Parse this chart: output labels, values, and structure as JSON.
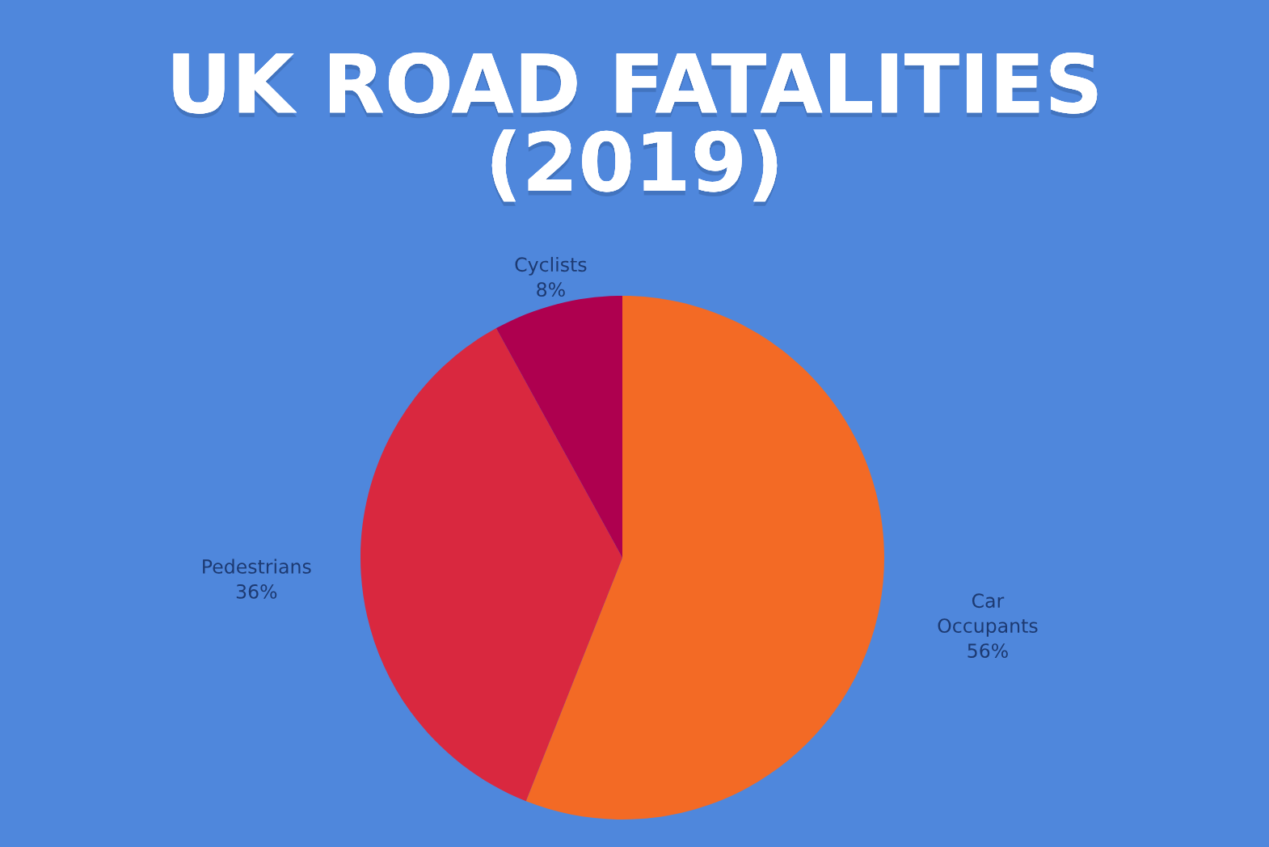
{
  "chart_data": {
    "type": "pie",
    "title": "UK ROAD FATALITIES\n(2019)",
    "categories": [
      "Car Occupants",
      "Pedestrians",
      "Cyclists"
    ],
    "values": [
      56,
      36,
      8
    ],
    "value_labels": [
      "56%",
      "36%",
      "8%"
    ],
    "colors": [
      "#f36a25",
      "#d9283f",
      "#ae004f"
    ],
    "legend": false
  }
}
